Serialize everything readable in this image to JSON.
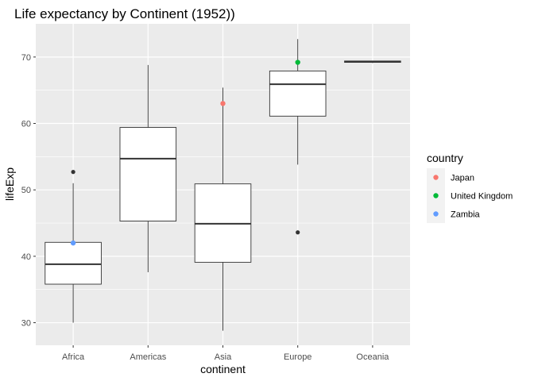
{
  "chart_data": {
    "type": "box",
    "title": "Life expectancy by Continent (1952))",
    "xlabel": "continent",
    "ylabel": "lifeExp",
    "ylim": [
      26.6,
      75.0
    ],
    "yticks": [
      30,
      40,
      50,
      60,
      70
    ],
    "categories": [
      "Africa",
      "Americas",
      "Asia",
      "Europe",
      "Oceania"
    ],
    "boxes": [
      {
        "category": "Africa",
        "lower_whisker": 30.0,
        "q1": 35.8,
        "median": 38.8,
        "q3": 42.1,
        "upper_whisker": 51.0,
        "outliers": [
          52.7
        ]
      },
      {
        "category": "Americas",
        "lower_whisker": 37.6,
        "q1": 45.3,
        "median": 54.7,
        "q3": 59.4,
        "upper_whisker": 68.8,
        "outliers": []
      },
      {
        "category": "Asia",
        "lower_whisker": 28.8,
        "q1": 39.1,
        "median": 44.9,
        "q3": 50.9,
        "upper_whisker": 65.4,
        "outliers": []
      },
      {
        "category": "Europe",
        "lower_whisker": 53.8,
        "q1": 61.1,
        "median": 65.9,
        "q3": 67.9,
        "upper_whisker": 72.7,
        "outliers": [
          43.6
        ]
      },
      {
        "category": "Oceania",
        "lower_whisker": 69.1,
        "q1": 69.2,
        "median": 69.3,
        "q3": 69.4,
        "upper_whisker": 69.4,
        "outliers": []
      }
    ],
    "highlight_points": [
      {
        "country": "Japan",
        "category": "Asia",
        "value": 63.0
      },
      {
        "country": "United Kingdom",
        "category": "Europe",
        "value": 69.2
      },
      {
        "country": "Zambia",
        "category": "Africa",
        "value": 42.0
      }
    ],
    "legend": {
      "title": "country",
      "position": "right",
      "entries": [
        {
          "label": "Japan",
          "color": "#F8766D"
        },
        {
          "label": "United Kingdom",
          "color": "#00BA38"
        },
        {
          "label": "Zambia",
          "color": "#619CFF"
        }
      ]
    },
    "grid": true,
    "colors": {
      "panel_bg": "#EBEBEB",
      "grid": "#FFFFFF",
      "box_fill": "#FFFFFF",
      "box_line": "#333333",
      "outlier": "#333333"
    }
  }
}
